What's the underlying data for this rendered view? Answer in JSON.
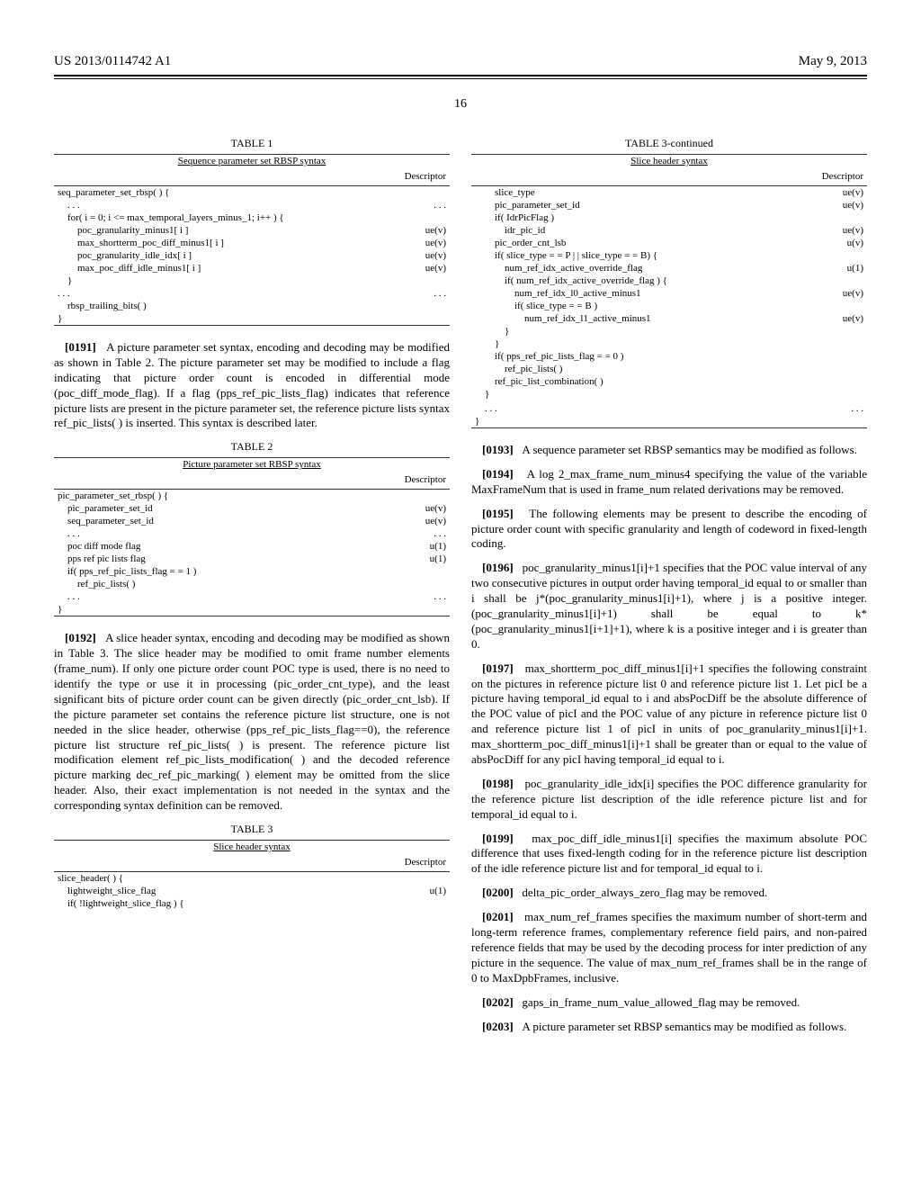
{
  "header": {
    "patent_number": "US 2013/0114742 A1",
    "date": "May 9, 2013",
    "page_number": "16"
  },
  "table1": {
    "label": "TABLE 1",
    "title": "Sequence parameter set RBSP syntax",
    "descriptor_header": "Descriptor",
    "rows": [
      {
        "text": "seq_parameter_set_rbsp( ) {",
        "desc": ""
      },
      {
        "text": "    . . .",
        "desc": ". . ."
      },
      {
        "text": "    for( i = 0; i <= max_temporal_layers_minus_1; i++ ) {",
        "desc": ""
      },
      {
        "text": "        poc_granularity_minus1[ i ]",
        "desc": "ue(v)"
      },
      {
        "text": "        max_shortterm_poc_diff_minus1[ i ]",
        "desc": "ue(v)"
      },
      {
        "text": "        poc_granularity_idle_idx[ i ]",
        "desc": "ue(v)"
      },
      {
        "text": "        max_poc_diff_idle_minus1[ i ]",
        "desc": "ue(v)"
      },
      {
        "text": "    }",
        "desc": ""
      },
      {
        "text": ". . .",
        "desc": ". . ."
      },
      {
        "text": "    rbsp_trailing_bits( )",
        "desc": ""
      },
      {
        "text": "}",
        "desc": ""
      }
    ]
  },
  "paras_left": {
    "p0191": {
      "num": "[0191]",
      "text": "A picture parameter set syntax, encoding and decoding may be modified as shown in Table 2. The picture parameter set may be modified to include a flag indicating that picture order count is encoded in differential mode (poc_diff_mode_flag). If a flag (pps_ref_pic_lists_flag) indicates that reference picture lists are present in the picture parameter set, the reference picture lists syntax ref_pic_lists( ) is inserted. This syntax is described later."
    },
    "p0192": {
      "num": "[0192]",
      "text": "A slice header syntax, encoding and decoding may be modified as shown in Table 3. The slice header may be modified to omit frame number elements (frame_num). If only one picture order count POC type is used, there is no need to identify the type or use it in processing (pic_order_cnt_type), and the least significant bits of picture order count can be given directly (pic_order_cnt_lsb). If the picture parameter set contains the reference picture list structure, one is not needed in the slice header, otherwise (pps_ref_pic_lists_flag==0), the reference picture list structure ref_pic_lists( ) is present. The reference picture list modification element ref_pic_lists_modification( ) and the decoded reference picture marking dec_ref_pic_marking( ) element may be omitted from the slice header. Also, their exact implementation is not needed in the syntax and the corresponding syntax definition can be removed."
    }
  },
  "table2": {
    "label": "TABLE 2",
    "title": "Picture parameter set RBSP syntax",
    "descriptor_header": "Descriptor",
    "rows": [
      {
        "text": "pic_parameter_set_rbsp( ) {",
        "desc": ""
      },
      {
        "text": "    pic_parameter_set_id",
        "desc": "ue(v)"
      },
      {
        "text": "    seq_parameter_set_id",
        "desc": "ue(v)"
      },
      {
        "text": "    . . .",
        "desc": ". . ."
      },
      {
        "text": "    poc diff mode flag",
        "desc": "u(1)"
      },
      {
        "text": "    pps ref pic lists flag",
        "desc": "u(1)"
      },
      {
        "text": "    if( pps_ref_pic_lists_flag = = 1 )",
        "desc": ""
      },
      {
        "text": "        ref_pic_lists( )",
        "desc": ""
      },
      {
        "text": "    . . .",
        "desc": ". . ."
      },
      {
        "text": "}",
        "desc": ""
      }
    ]
  },
  "table3a": {
    "label": "TABLE 3",
    "title": "Slice header syntax",
    "descriptor_header": "Descriptor",
    "rows": [
      {
        "text": "slice_header( ) {",
        "desc": ""
      },
      {
        "text": "    lightweight_slice_flag",
        "desc": "u(1)"
      },
      {
        "text": "    if( !lightweight_slice_flag ) {",
        "desc": ""
      }
    ]
  },
  "table3b": {
    "label": "TABLE 3-continued",
    "title": "Slice header syntax",
    "descriptor_header": "Descriptor",
    "rows": [
      {
        "text": "        slice_type",
        "desc": "ue(v)"
      },
      {
        "text": "        pic_parameter_set_id",
        "desc": "ue(v)"
      },
      {
        "text": "        if( IdrPicFlag )",
        "desc": ""
      },
      {
        "text": "            idr_pic_id",
        "desc": "ue(v)"
      },
      {
        "text": "        pic_order_cnt_lsb",
        "desc": "u(v)"
      },
      {
        "text": "        if( slice_type = = P | | slice_type = = B) {",
        "desc": ""
      },
      {
        "text": "            num_ref_idx_active_override_flag",
        "desc": "u(1)"
      },
      {
        "text": "            if( num_ref_idx_active_override_flag ) {",
        "desc": ""
      },
      {
        "text": "                num_ref_idx_l0_active_minus1",
        "desc": "ue(v)"
      },
      {
        "text": "                if( slice_type = = B )",
        "desc": ""
      },
      {
        "text": "                    num_ref_idx_l1_active_minus1",
        "desc": "ue(v)"
      },
      {
        "text": "            }",
        "desc": ""
      },
      {
        "text": "        }",
        "desc": ""
      },
      {
        "text": "        if( pps_ref_pic_lists_flag = = 0 )",
        "desc": ""
      },
      {
        "text": "            ref_pic_lists( )",
        "desc": ""
      },
      {
        "text": "        ref_pic_list_combination( )",
        "desc": ""
      },
      {
        "text": "    }",
        "desc": ""
      },
      {
        "text": "",
        "desc": ""
      },
      {
        "text": "    . . .",
        "desc": ". . ."
      },
      {
        "text": "}",
        "desc": ""
      }
    ]
  },
  "paras_right": {
    "p0193": {
      "num": "[0193]",
      "text": "A sequence parameter set RBSP semantics may be modified as follows."
    },
    "p0194": {
      "num": "[0194]",
      "text": "A log 2_max_frame_num_minus4 specifying the value of the variable MaxFrameNum that is used in frame_num related derivations may be removed."
    },
    "p0195": {
      "num": "[0195]",
      "text": "The following elements may be present to describe the encoding of picture order count with specific granularity and length of codeword in fixed-length coding."
    },
    "p0196": {
      "num": "[0196]",
      "text": "poc_granularity_minus1[i]+1 specifies that the POC value interval of any two consecutive pictures in output order having temporal_id equal to or smaller than i shall be j*(poc_granularity_minus1[i]+1), where j is a positive integer. (poc_granularity_minus1[i]+1) shall be equal to k*(poc_granularity_minus1[i+1]+1), where k is a positive integer and i is greater than 0."
    },
    "p0197": {
      "num": "[0197]",
      "text": "max_shortterm_poc_diff_minus1[i]+1 specifies the following constraint on the pictures in reference picture list 0 and reference picture list 1. Let picI be a picture having temporal_id equal to i and absPocDiff be the absolute difference of the POC value of picI and the POC value of any picture in reference picture list 0 and reference picture list 1 of picI in units of poc_granularity_minus1[i]+1. max_shortterm_poc_diff_minus1[i]+1 shall be greater than or equal to the value of absPocDiff for any picI having temporal_id equal to i."
    },
    "p0198": {
      "num": "[0198]",
      "text": "poc_granularity_idle_idx[i] specifies the POC difference granularity for the reference picture list description of the idle reference picture list and for temporal_id equal to i."
    },
    "p0199": {
      "num": "[0199]",
      "text": "max_poc_diff_idle_minus1[i] specifies the maximum absolute POC difference that uses fixed-length coding for in the reference picture list description of the idle reference picture list and for temporal_id equal to i."
    },
    "p0200": {
      "num": "[0200]",
      "text": "delta_pic_order_always_zero_flag may be removed."
    },
    "p0201": {
      "num": "[0201]",
      "text": "max_num_ref_frames specifies the maximum number of short-term and long-term reference frames, complementary reference field pairs, and non-paired reference fields that may be used by the decoding process for inter prediction of any picture in the sequence. The value of max_num_ref_frames shall be in the range of 0 to MaxDpbFrames, inclusive."
    },
    "p0202": {
      "num": "[0202]",
      "text": "gaps_in_frame_num_value_allowed_flag may be removed."
    },
    "p0203": {
      "num": "[0203]",
      "text": "A picture parameter set RBSP semantics may be modified as follows."
    }
  }
}
